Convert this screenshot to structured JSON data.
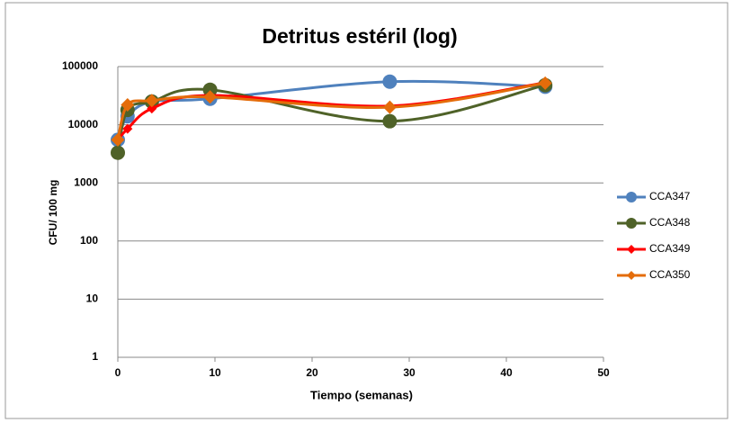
{
  "chart_data": {
    "type": "line",
    "title": "Detritus estéril (log)",
    "xlabel": "Tiempo (semanas)",
    "ylabel": "CFU/ 100 mg",
    "x": [
      0,
      1,
      3.5,
      9.5,
      28,
      44
    ],
    "series": [
      {
        "name": "CCA347",
        "color": "#4f81bd",
        "marker": "circle",
        "values": [
          5500,
          14000,
          25000,
          28000,
          55000,
          45000
        ]
      },
      {
        "name": "CCA348",
        "color": "#4f6228",
        "marker": "circle",
        "values": [
          3300,
          18000,
          25000,
          40000,
          11500,
          48000
        ]
      },
      {
        "name": "CCA349",
        "color": "#ff0000",
        "marker": "diamond",
        "values": [
          5500,
          8500,
          19000,
          32000,
          21000,
          53000
        ]
      },
      {
        "name": "CCA350",
        "color": "#e46c0a",
        "marker": "diamond",
        "values": [
          5500,
          22000,
          26000,
          30000,
          20000,
          52000
        ]
      }
    ],
    "xlim": [
      0,
      50
    ],
    "xticks": [
      0,
      10,
      20,
      30,
      40,
      50
    ],
    "ylim": [
      1,
      100000
    ],
    "yticks": [
      1,
      10,
      100,
      1000,
      10000,
      100000
    ],
    "yscale": "log",
    "grid": true,
    "legend": "right",
    "smooth": true
  }
}
